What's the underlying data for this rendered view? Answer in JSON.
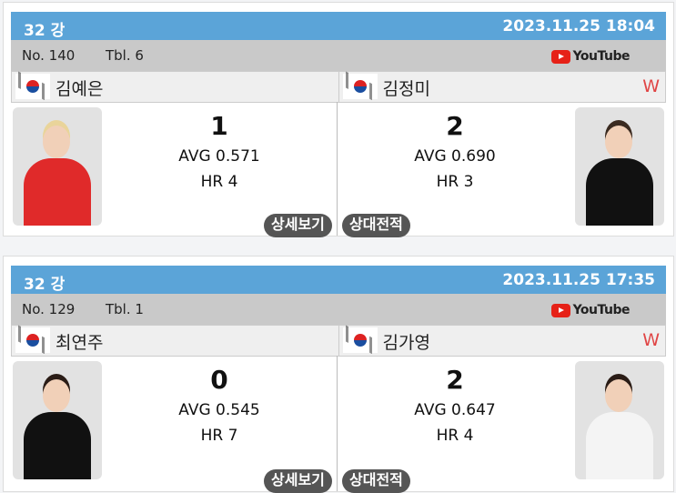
{
  "matches": [
    {
      "round": "32 강",
      "datetime": "2023.11.25 18:04",
      "no": "No. 140",
      "table": "Tbl. 6",
      "youtube": "YouTube",
      "left": {
        "name": "김예은",
        "score": "1",
        "avg": "AVG 0.571",
        "hr": "HR 4",
        "winner": "",
        "shirt": "#e02a2a",
        "hair": "#e9d49a"
      },
      "right": {
        "name": "김정미",
        "score": "2",
        "avg": "AVG 0.690",
        "hr": "HR 3",
        "winner": "W",
        "shirt": "#111",
        "hair": "#3a2a20"
      },
      "detail_btn": "상세보기",
      "h2h_btn": "상대전적"
    },
    {
      "round": "32 강",
      "datetime": "2023.11.25 17:35",
      "no": "No. 129",
      "table": "Tbl. 1",
      "youtube": "YouTube",
      "left": {
        "name": "최연주",
        "score": "0",
        "avg": "AVG 0.545",
        "hr": "HR 7",
        "winner": "",
        "shirt": "#111",
        "hair": "#2a1c16"
      },
      "right": {
        "name": "김가영",
        "score": "2",
        "avg": "AVG 0.647",
        "hr": "HR 4",
        "winner": "W",
        "shirt": "#f4f4f4",
        "hair": "#2a1c16"
      },
      "detail_btn": "상세보기",
      "h2h_btn": "상대전적"
    }
  ]
}
